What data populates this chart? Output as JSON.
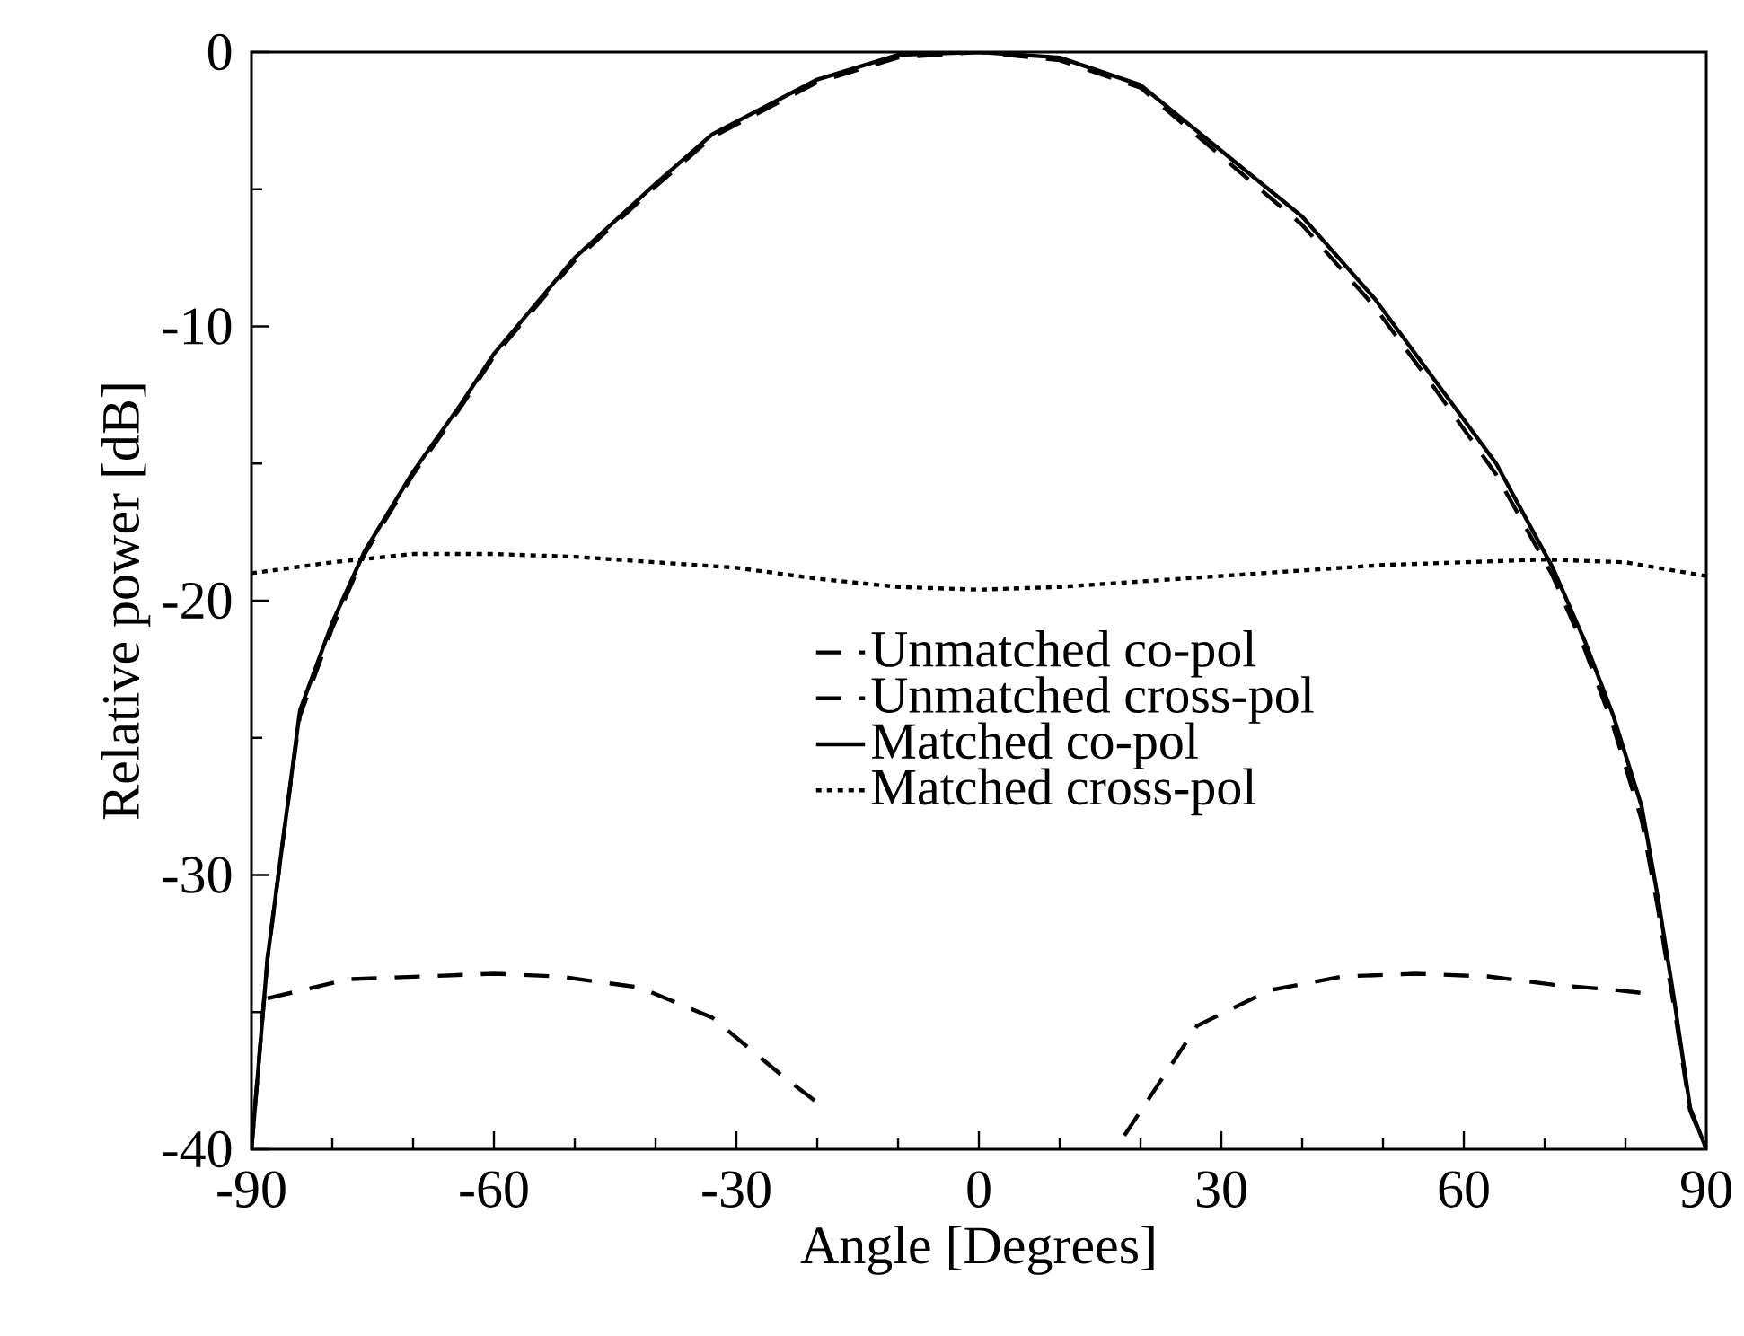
{
  "chart_data": {
    "type": "line",
    "xlabel": "Angle [Degrees]",
    "ylabel": "Relative power [dB]",
    "xlim": [
      -90,
      90
    ],
    "ylim": [
      -40,
      0
    ],
    "xticks": [
      -90,
      -60,
      -30,
      0,
      30,
      60,
      90
    ],
    "yticks": [
      -40,
      -30,
      -20,
      -10,
      0
    ],
    "grid": false,
    "legend": "center",
    "marker": "none",
    "series": [
      {
        "name": "Unmatched co-pol",
        "color": "#000000",
        "line_style": "dashed",
        "x": [
          -90,
          -88,
          -86,
          -84,
          -80,
          -76,
          -70,
          -64,
          -60,
          -50,
          -40,
          -33,
          -20,
          -10,
          0,
          10,
          20,
          30,
          40,
          49,
          56,
          64,
          71,
          75,
          78.5,
          82,
          84,
          86,
          88,
          90
        ],
        "values": [
          -40,
          -33,
          -28.5,
          -24.2,
          -21,
          -18.3,
          -15.4,
          -12.9,
          -11.1,
          -7.6,
          -4.9,
          -3.1,
          -1.1,
          -0.2,
          0,
          -0.3,
          -1.3,
          -3.8,
          -6.3,
          -9.3,
          -12.1,
          -15.4,
          -19.1,
          -21.8,
          -24.6,
          -28,
          -31.2,
          -34.8,
          -38.6,
          -40
        ]
      },
      {
        "name": "Unmatched cross-pol",
        "color": "#000000",
        "line_style": "dashed",
        "x": [
          -88,
          -78,
          -69,
          -60,
          -52,
          -42,
          -33,
          -24,
          -20,
          0,
          18,
          27,
          36,
          45,
          54,
          63,
          71,
          79,
          82
        ],
        "values": [
          -34.5,
          -33.8,
          -33.7,
          -33.6,
          -33.7,
          -34.1,
          -35.2,
          -37.4,
          -38.3,
          null,
          -39.5,
          -35.5,
          -34.2,
          -33.7,
          -33.6,
          -33.7,
          -34,
          -34.2,
          -34.3
        ]
      },
      {
        "name": "Matched co-pol",
        "color": "#000000",
        "line_style": "solid",
        "x": [
          -90,
          -88,
          -86,
          -84,
          -80,
          -76,
          -70,
          -64,
          -60,
          -50,
          -40,
          -33,
          -20,
          -10,
          0,
          10,
          20,
          30,
          40,
          49,
          56,
          64,
          71,
          75,
          78.5,
          82,
          84,
          86,
          88,
          90
        ],
        "values": [
          -40,
          -33,
          -28.5,
          -24,
          -20.8,
          -18.2,
          -15.3,
          -12.8,
          -11,
          -7.5,
          -4.8,
          -3,
          -1,
          -0.1,
          0,
          -0.2,
          -1.2,
          -3.6,
          -6,
          -9,
          -11.8,
          -15,
          -18.8,
          -21.5,
          -24.2,
          -27.5,
          -30.8,
          -34.5,
          -38.5,
          -40
        ]
      },
      {
        "name": "Matched cross-pol",
        "color": "#000000",
        "line_style": "dotted",
        "x": [
          -90,
          -80,
          -70,
          -60,
          -50,
          -40,
          -30,
          -20,
          -10,
          0,
          10,
          20,
          30,
          40,
          50,
          60,
          70,
          80,
          90
        ],
        "values": [
          -19,
          -18.6,
          -18.3,
          -18.3,
          -18.4,
          -18.6,
          -18.8,
          -19.2,
          -19.5,
          -19.6,
          -19.5,
          -19.3,
          -19.1,
          -18.9,
          -18.7,
          -18.6,
          -18.5,
          -18.6,
          -19.1
        ]
      }
    ]
  }
}
